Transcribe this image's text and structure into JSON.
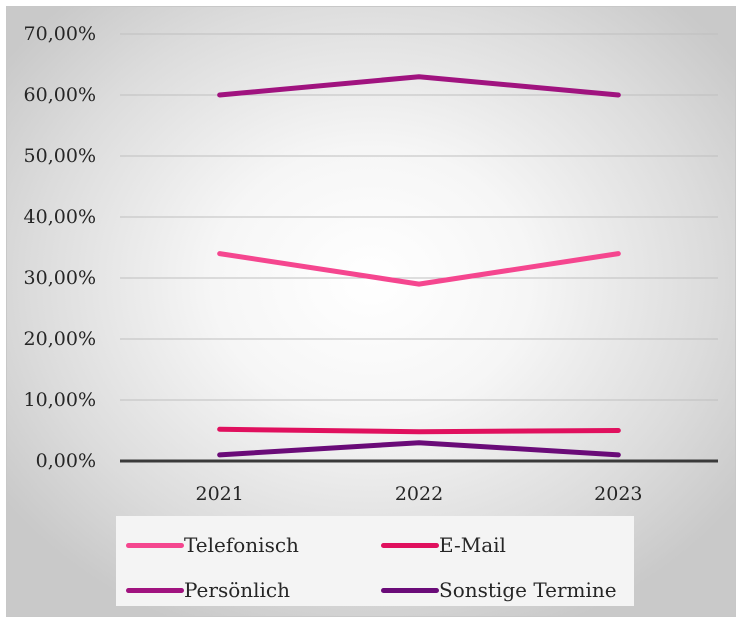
{
  "chart_data": {
    "type": "line",
    "categories": [
      "2021",
      "2022",
      "2023"
    ],
    "ylim": [
      0,
      70
    ],
    "yticks": [
      "0,00%",
      "10,00%",
      "20,00%",
      "30,00%",
      "40,00%",
      "50,00%",
      "60,00%",
      "70,00%"
    ],
    "grid": true,
    "legend_position": "bottom",
    "series": [
      {
        "name": "Telefonisch",
        "values": [
          34,
          29,
          34
        ],
        "color": "#f5468f"
      },
      {
        "name": "E-Mail",
        "values": [
          5.2,
          4.8,
          5.0
        ],
        "color": "#e0105e"
      },
      {
        "name": "Persönlich",
        "values": [
          60,
          63,
          60
        ],
        "color": "#a0137f"
      },
      {
        "name": "Sonstige Termine",
        "values": [
          1.0,
          3.0,
          1.0
        ],
        "color": "#6a0b78"
      }
    ]
  }
}
